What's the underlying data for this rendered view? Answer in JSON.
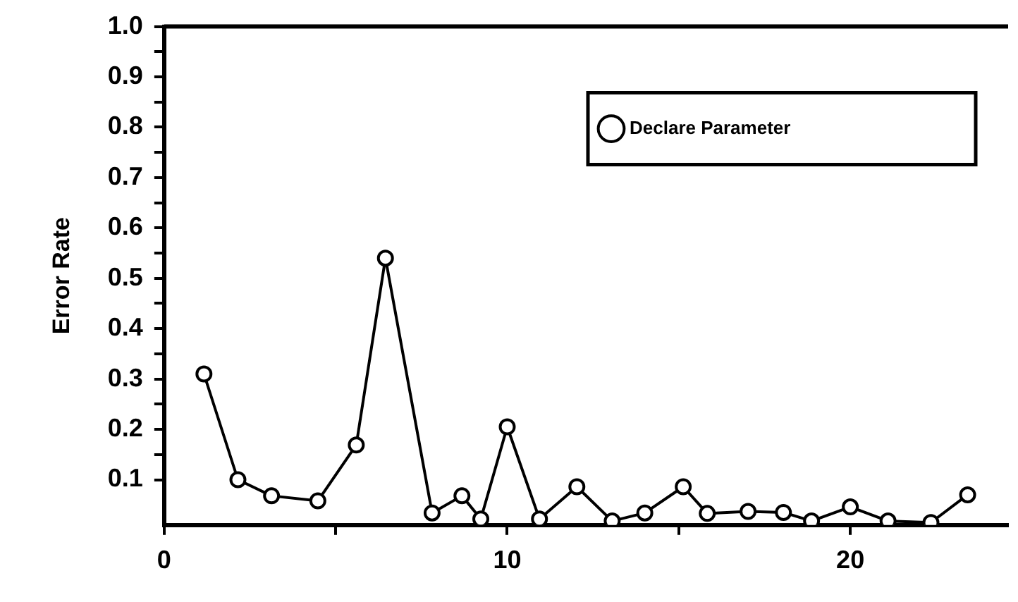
{
  "chart_data": {
    "type": "line",
    "ylabel": "Error Rate",
    "x": [
      1.16,
      2.15,
      3.13,
      4.48,
      5.6,
      6.45,
      7.81,
      8.68,
      9.23,
      10.0,
      10.94,
      12.03,
      13.06,
      14.01,
      15.13,
      15.83,
      17.02,
      18.05,
      18.87,
      20.0,
      21.1,
      22.35,
      23.42
    ],
    "series": [
      {
        "name": "Declare Parameter",
        "color": "#000000",
        "values": [
          0.31,
          0.1,
          0.068,
          0.058,
          0.169,
          0.54,
          0.034,
          0.068,
          0.022,
          0.205,
          0.022,
          0.086,
          0.018,
          0.034,
          0.086,
          0.033,
          0.037,
          0.035,
          0.018,
          0.046,
          0.018,
          0.015,
          0.07
        ]
      }
    ],
    "xlim": [
      0,
      24.6
    ],
    "xticks": [
      0,
      {
        "value": 5,
        "label": null
      },
      10,
      {
        "value": 15,
        "label": null
      },
      20
    ],
    "ylim": [
      0.01,
      1.0
    ],
    "yticks": [
      0.1,
      {
        "value": 0.15,
        "label": null
      },
      0.2,
      {
        "value": 0.25,
        "label": null
      },
      0.3,
      {
        "value": 0.35,
        "label": null
      },
      0.4,
      {
        "value": 0.45,
        "label": null
      },
      0.5,
      {
        "value": 0.55,
        "label": null
      },
      0.6,
      {
        "value": 0.65,
        "label": null
      },
      0.7,
      {
        "value": 0.75,
        "label": null
      },
      0.8,
      {
        "value": 0.85,
        "label": null
      },
      0.9,
      {
        "value": 0.95,
        "label": null
      },
      {
        "value": 1.0,
        "label": "1.0"
      }
    ],
    "marker": "circle",
    "line_style": "solid",
    "legend": "top right",
    "grid": false
  }
}
